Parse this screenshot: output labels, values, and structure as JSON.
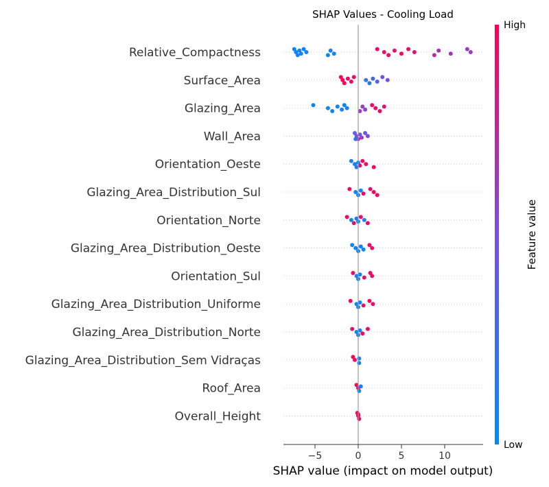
{
  "chart_data": {
    "type": "scatter",
    "title": "SHAP Values - Cooling Load",
    "xlabel": "SHAP value (impact on model output)",
    "ylabel": "",
    "xlim": [
      -8.5,
      14.5
    ],
    "xticks": [
      -5,
      0,
      5,
      10
    ],
    "colorbar": {
      "label": "Feature value",
      "high_label": "High",
      "low_label": "Low",
      "low_color": "#008bfb",
      "high_color": "#ff0052"
    },
    "grid": false,
    "features": [
      {
        "name": "Relative_Compactness",
        "points": [
          {
            "x": -7.4,
            "v": 0.05
          },
          {
            "x": -7.2,
            "v": 0.05
          },
          {
            "x": -7.0,
            "v": 0.1
          },
          {
            "x": -6.8,
            "v": 0.05
          },
          {
            "x": -6.6,
            "v": 0.1
          },
          {
            "x": -6.3,
            "v": 0.05
          },
          {
            "x": -6.0,
            "v": 0.1
          },
          {
            "x": -3.5,
            "v": 0.05
          },
          {
            "x": -3.2,
            "v": 0.1
          },
          {
            "x": -2.8,
            "v": 0.1
          },
          {
            "x": 2.2,
            "v": 0.95
          },
          {
            "x": 3.0,
            "v": 0.9
          },
          {
            "x": 3.5,
            "v": 0.95
          },
          {
            "x": 4.2,
            "v": 0.9
          },
          {
            "x": 5.0,
            "v": 1.0
          },
          {
            "x": 5.8,
            "v": 0.95
          },
          {
            "x": 6.5,
            "v": 0.9
          },
          {
            "x": 8.8,
            "v": 0.7
          },
          {
            "x": 9.3,
            "v": 0.7
          },
          {
            "x": 10.7,
            "v": 0.65
          },
          {
            "x": 12.6,
            "v": 0.6
          },
          {
            "x": 13.0,
            "v": 0.6
          }
        ]
      },
      {
        "name": "Surface_Area",
        "points": [
          {
            "x": -2.0,
            "v": 0.95
          },
          {
            "x": -1.8,
            "v": 1.0
          },
          {
            "x": -1.6,
            "v": 0.95
          },
          {
            "x": -1.2,
            "v": 0.95
          },
          {
            "x": -0.8,
            "v": 0.9
          },
          {
            "x": -0.5,
            "v": 0.95
          },
          {
            "x": 0.9,
            "v": 0.2
          },
          {
            "x": 1.3,
            "v": 0.2
          },
          {
            "x": 1.7,
            "v": 0.3
          },
          {
            "x": 2.2,
            "v": 0.3
          },
          {
            "x": 2.8,
            "v": 0.45
          },
          {
            "x": 3.4,
            "v": 0.5
          }
        ]
      },
      {
        "name": "Glazing_Area",
        "points": [
          {
            "x": -5.2,
            "v": 0.05
          },
          {
            "x": -3.5,
            "v": 0.05
          },
          {
            "x": -3.0,
            "v": 0.05
          },
          {
            "x": -2.4,
            "v": 0.05
          },
          {
            "x": -1.9,
            "v": 0.1
          },
          {
            "x": -1.6,
            "v": 0.05
          },
          {
            "x": -1.3,
            "v": 0.1
          },
          {
            "x": 0.2,
            "v": 0.6
          },
          {
            "x": 0.5,
            "v": 0.6
          },
          {
            "x": 0.8,
            "v": 0.55
          },
          {
            "x": 1.6,
            "v": 0.9
          },
          {
            "x": 2.0,
            "v": 0.95
          },
          {
            "x": 2.5,
            "v": 0.95
          },
          {
            "x": 3.0,
            "v": 0.9
          }
        ]
      },
      {
        "name": "Wall_Area",
        "points": [
          {
            "x": -0.4,
            "v": 0.4
          },
          {
            "x": -0.2,
            "v": 0.5
          },
          {
            "x": 0.0,
            "v": 0.8
          },
          {
            "x": 0.2,
            "v": 0.5
          },
          {
            "x": 0.4,
            "v": 0.6
          },
          {
            "x": 0.8,
            "v": 0.45
          },
          {
            "x": 1.1,
            "v": 0.55
          },
          {
            "x": -0.3,
            "v": 0.2
          }
        ]
      },
      {
        "name": "Orientation_Oeste",
        "points": [
          {
            "x": -0.8,
            "v": 0.1
          },
          {
            "x": -0.4,
            "v": 0.05
          },
          {
            "x": -0.2,
            "v": 0.1
          },
          {
            "x": 0.0,
            "v": 0.05
          },
          {
            "x": 0.2,
            "v": 0.9
          },
          {
            "x": 0.5,
            "v": 0.95
          },
          {
            "x": 0.9,
            "v": 0.9
          },
          {
            "x": 1.8,
            "v": 0.95
          }
        ]
      },
      {
        "name": "Glazing_Area_Distribution_Sul",
        "points": [
          {
            "x": -1.0,
            "v": 0.95
          },
          {
            "x": -0.3,
            "v": 0.05
          },
          {
            "x": 0.0,
            "v": 0.1
          },
          {
            "x": 0.3,
            "v": 0.05
          },
          {
            "x": 0.6,
            "v": 0.95
          },
          {
            "x": 1.4,
            "v": 0.9
          },
          {
            "x": 1.8,
            "v": 0.95
          },
          {
            "x": 2.2,
            "v": 0.95
          }
        ]
      },
      {
        "name": "Orientation_Norte",
        "points": [
          {
            "x": -1.3,
            "v": 0.95
          },
          {
            "x": -0.8,
            "v": 0.05
          },
          {
            "x": -0.5,
            "v": 0.9
          },
          {
            "x": -0.2,
            "v": 0.1
          },
          {
            "x": 0.0,
            "v": 0.05
          },
          {
            "x": 0.3,
            "v": 0.9
          },
          {
            "x": 0.7,
            "v": 0.1
          },
          {
            "x": 1.1,
            "v": 0.95
          }
        ]
      },
      {
        "name": "Glazing_Area_Distribution_Oeste",
        "points": [
          {
            "x": -0.7,
            "v": 0.05
          },
          {
            "x": -0.3,
            "v": 0.1
          },
          {
            "x": 0.0,
            "v": 0.05
          },
          {
            "x": 0.3,
            "v": 0.1
          },
          {
            "x": 0.6,
            "v": 0.05
          },
          {
            "x": 1.3,
            "v": 0.95
          },
          {
            "x": 1.6,
            "v": 0.9
          }
        ]
      },
      {
        "name": "Orientation_Sul",
        "points": [
          {
            "x": -0.6,
            "v": 0.95
          },
          {
            "x": -0.2,
            "v": 0.05
          },
          {
            "x": 0.0,
            "v": 0.1
          },
          {
            "x": 0.2,
            "v": 0.05
          },
          {
            "x": 0.7,
            "v": 0.9
          },
          {
            "x": 1.4,
            "v": 0.95
          },
          {
            "x": 1.6,
            "v": 0.9
          }
        ]
      },
      {
        "name": "Glazing_Area_Distribution_Uniforme",
        "points": [
          {
            "x": -0.9,
            "v": 0.95
          },
          {
            "x": -0.2,
            "v": 0.05
          },
          {
            "x": 0.0,
            "v": 0.1
          },
          {
            "x": 0.2,
            "v": 0.05
          },
          {
            "x": 0.6,
            "v": 0.9
          },
          {
            "x": 1.3,
            "v": 0.95
          },
          {
            "x": 1.7,
            "v": 0.9
          }
        ]
      },
      {
        "name": "Glazing_Area_Distribution_Norte",
        "points": [
          {
            "x": -0.7,
            "v": 0.9
          },
          {
            "x": -0.2,
            "v": 0.05
          },
          {
            "x": 0.0,
            "v": 0.1
          },
          {
            "x": 0.2,
            "v": 0.05
          },
          {
            "x": 0.5,
            "v": 0.95
          },
          {
            "x": 1.1,
            "v": 0.9
          }
        ]
      },
      {
        "name": "Glazing_Area_Distribution_Sem Vidraças",
        "points": [
          {
            "x": -0.6,
            "v": 0.95
          },
          {
            "x": -0.4,
            "v": 0.9
          },
          {
            "x": 0.1,
            "v": 0.05
          },
          {
            "x": 0.1,
            "v": 0.1
          }
        ]
      },
      {
        "name": "Roof_Area",
        "points": [
          {
            "x": -0.2,
            "v": 0.95
          },
          {
            "x": 0.0,
            "v": 0.9
          },
          {
            "x": 0.1,
            "v": 0.05
          },
          {
            "x": 0.3,
            "v": 0.1
          }
        ]
      },
      {
        "name": "Overall_Height",
        "points": [
          {
            "x": -0.1,
            "v": 0.95
          },
          {
            "x": 0.0,
            "v": 0.9
          },
          {
            "x": 0.1,
            "v": 0.95
          },
          {
            "x": 0.0,
            "v": 1.0
          }
        ]
      }
    ]
  }
}
